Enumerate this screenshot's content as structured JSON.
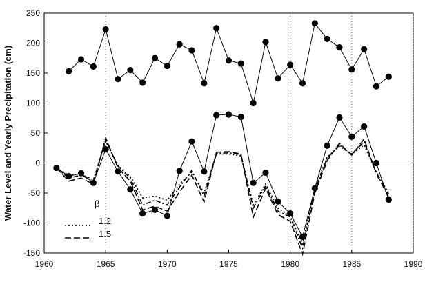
{
  "chart_data": {
    "type": "line",
    "title": "",
    "xlabel": "",
    "ylabel": "Water Level and Yearly Precipitation (cm)",
    "xlim": [
      1960,
      1990
    ],
    "ylim": [
      -150,
      250
    ],
    "xticks": [
      1960,
      1965,
      1970,
      1975,
      1980,
      1985,
      1990
    ],
    "yticks": [
      -150,
      -100,
      -50,
      0,
      50,
      100,
      150,
      200,
      250
    ],
    "grid": "dotted vertical lines at 1965, 1980, 1985, 1990; zero line",
    "legend": {
      "position": "bottom-left",
      "title": "β",
      "entries": [
        {
          "label": "1.2",
          "style": "dotted"
        },
        {
          "label": "1.5",
          "style": "dashed"
        }
      ]
    },
    "series": [
      {
        "style": "solid-with-markers",
        "x": [
          1962,
          1963,
          1964,
          1965,
          1966,
          1967,
          1968,
          1969,
          1970,
          1971,
          1972,
          1973,
          1974,
          1975,
          1976,
          1977,
          1978,
          1979,
          1980,
          1981,
          1982,
          1983,
          1984,
          1985,
          1986,
          1987,
          1988
        ],
        "values": [
          153,
          173,
          161,
          223,
          140,
          155,
          134,
          175,
          162,
          198,
          188,
          133,
          225,
          171,
          166,
          100,
          202,
          141,
          164,
          133,
          233,
          207,
          193,
          156,
          190,
          128,
          144
        ]
      },
      {
        "style": "solid-with-markers",
        "x": [
          1961,
          1962,
          1963,
          1964,
          1965,
          1966,
          1967,
          1968,
          1969,
          1970,
          1971,
          1972,
          1973,
          1974,
          1975,
          1976,
          1977,
          1978,
          1979,
          1980,
          1981,
          1982,
          1983,
          1984,
          1985,
          1986,
          1987,
          1988
        ],
        "values": [
          -8,
          -22,
          -17,
          -33,
          23,
          -14,
          -44,
          -84,
          -78,
          -88,
          -13,
          36,
          -14,
          80,
          81,
          77,
          -33,
          -16,
          -64,
          -84,
          -123,
          -42,
          29,
          76,
          44,
          61,
          0,
          -61
        ]
      },
      {
        "name": "1.2",
        "style": "dotted",
        "x": [
          1961,
          1962,
          1963,
          1964,
          1965,
          1966,
          1967,
          1968,
          1969,
          1970,
          1971,
          1972,
          1973,
          1974,
          1975,
          1976,
          1977,
          1978,
          1979,
          1980,
          1981,
          1982,
          1983,
          1984,
          1985,
          1986,
          1987,
          1988
        ],
        "values": [
          -8,
          -20,
          -18,
          -28,
          36,
          -4,
          -22,
          -58,
          -55,
          -62,
          -35,
          -15,
          -50,
          15,
          15,
          12,
          -70,
          -35,
          -75,
          -88,
          -135,
          -42,
          10,
          28,
          15,
          30,
          -15,
          -50
        ]
      },
      {
        "name": "1.5",
        "style": "dashed",
        "x": [
          1961,
          1962,
          1963,
          1964,
          1965,
          1966,
          1967,
          1968,
          1969,
          1970,
          1971,
          1972,
          1973,
          1974,
          1975,
          1976,
          1977,
          1978,
          1979,
          1980,
          1981,
          1982,
          1983,
          1984,
          1985,
          1986,
          1987,
          1988
        ],
        "values": [
          -8,
          -30,
          -25,
          -35,
          42,
          -8,
          -30,
          -78,
          -72,
          -80,
          -48,
          -20,
          -65,
          18,
          19,
          15,
          -90,
          -42,
          -86,
          -97,
          -152,
          -50,
          4,
          33,
          13,
          40,
          -18,
          -56
        ]
      },
      {
        "style": "dash-dot",
        "x": [
          1961,
          1962,
          1963,
          1964,
          1965,
          1966,
          1967,
          1968,
          1969,
          1970,
          1971,
          1972,
          1973,
          1974,
          1975,
          1976,
          1977,
          1978,
          1979,
          1980,
          1981,
          1982,
          1983,
          1984,
          1985,
          1986,
          1987,
          1988
        ],
        "values": [
          -8,
          -25,
          -20,
          -30,
          39,
          -5,
          -25,
          -70,
          -62,
          -70,
          -40,
          -12,
          -55,
          16,
          17,
          14,
          -75,
          -38,
          -80,
          -90,
          -142,
          -45,
          8,
          30,
          15,
          35,
          -16,
          -52
        ]
      }
    ]
  }
}
